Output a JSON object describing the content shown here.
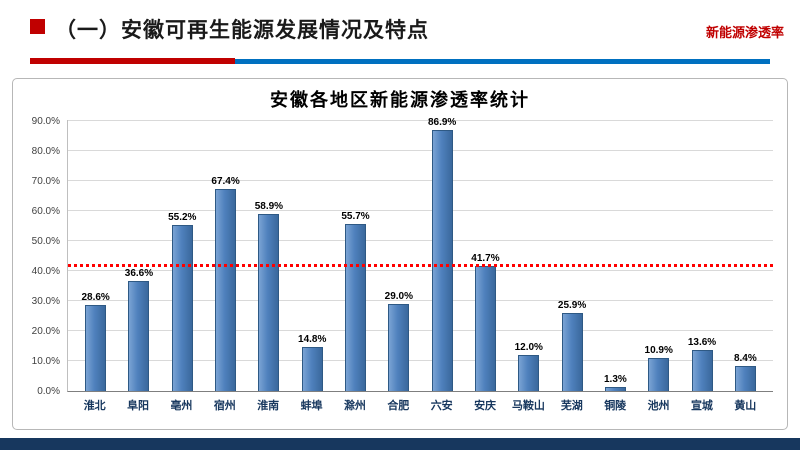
{
  "header": {
    "title": "（一）安徽可再生能源发展情况及特点",
    "corner_label": "新能源渗透率",
    "accent_red": "#c00000",
    "accent_blue": "#0070c0"
  },
  "footer": {
    "bar_color": "#17375e"
  },
  "chart_data": {
    "type": "bar",
    "title": "安徽各地区新能源渗透率统计",
    "categories": [
      "淮北",
      "阜阳",
      "亳州",
      "宿州",
      "淮南",
      "蚌埠",
      "滁州",
      "合肥",
      "六安",
      "安庆",
      "马鞍山",
      "芜湖",
      "铜陵",
      "池州",
      "宣城",
      "黄山"
    ],
    "values": [
      28.6,
      36.6,
      55.2,
      67.4,
      58.9,
      14.8,
      55.7,
      29.0,
      86.9,
      41.7,
      12.0,
      25.9,
      1.3,
      10.9,
      13.6,
      8.4
    ],
    "value_label_suffix": "%",
    "ylim": [
      0,
      90
    ],
    "ytick_step": 10,
    "ytick_format": "one_decimal_percent",
    "grid": true,
    "legend": "none",
    "bar_color": "#4f81bd",
    "bar_border_color": "#2e5984",
    "reference_line": {
      "value": 41.5,
      "color": "#ff0000",
      "style": "dotted"
    }
  }
}
